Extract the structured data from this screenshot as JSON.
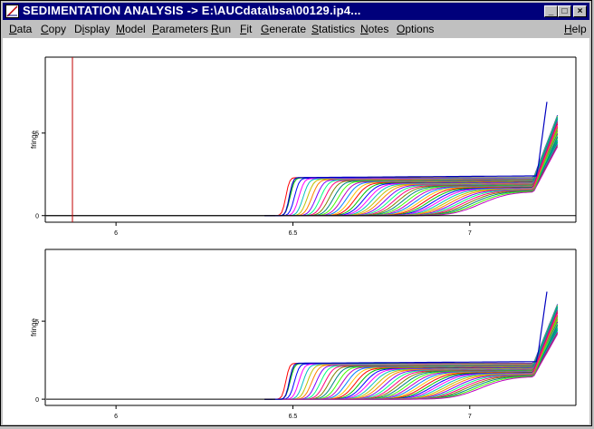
{
  "window": {
    "title": "SEDIMENTATION ANALYSIS -> E:\\AUCdata\\bsa\\00129.ip4...",
    "minimize_glyph": "_",
    "maximize_glyph": "□",
    "close_glyph": "×"
  },
  "menu": [
    {
      "label": "Data",
      "accel": 0
    },
    {
      "label": "Copy",
      "accel": 0
    },
    {
      "label": "Display",
      "accel": 1
    },
    {
      "label": "Model",
      "accel": 0
    },
    {
      "label": "Parameters",
      "accel": 0
    },
    {
      "label": "Run",
      "accel": 0
    },
    {
      "label": "Fit",
      "accel": 0
    },
    {
      "label": "Generate",
      "accel": 0
    },
    {
      "label": "Statistics",
      "accel": 0
    },
    {
      "label": "Notes",
      "accel": 0
    },
    {
      "label": "Options",
      "accel": 0
    },
    {
      "label": "Help",
      "accel": 0
    }
  ],
  "chart_data": [
    {
      "type": "line",
      "ylabel": "fringe",
      "xlim": [
        5.8,
        7.3
      ],
      "ylim": [
        -0.4,
        9.6
      ],
      "xticks": [
        6,
        6.5,
        7
      ],
      "xtick_labels": [
        "6",
        "6.5",
        "7"
      ],
      "yticks": [
        0,
        5
      ],
      "ytick_labels": [
        "0",
        "5"
      ],
      "meniscus_marker_x": 5.8,
      "baseline_y": 0,
      "series_count": "many",
      "grid": false
    },
    {
      "type": "line",
      "ylabel": "fringe",
      "xlim": [
        5.8,
        7.3
      ],
      "ylim": [
        -0.4,
        9.6
      ],
      "xticks": [
        6,
        6.5,
        7
      ],
      "xtick_labels": [
        "6",
        "6.5",
        "7"
      ],
      "yticks": [
        0,
        5
      ],
      "ytick_labels": [
        "0",
        "5"
      ],
      "series_count": "many",
      "grid": false
    }
  ]
}
